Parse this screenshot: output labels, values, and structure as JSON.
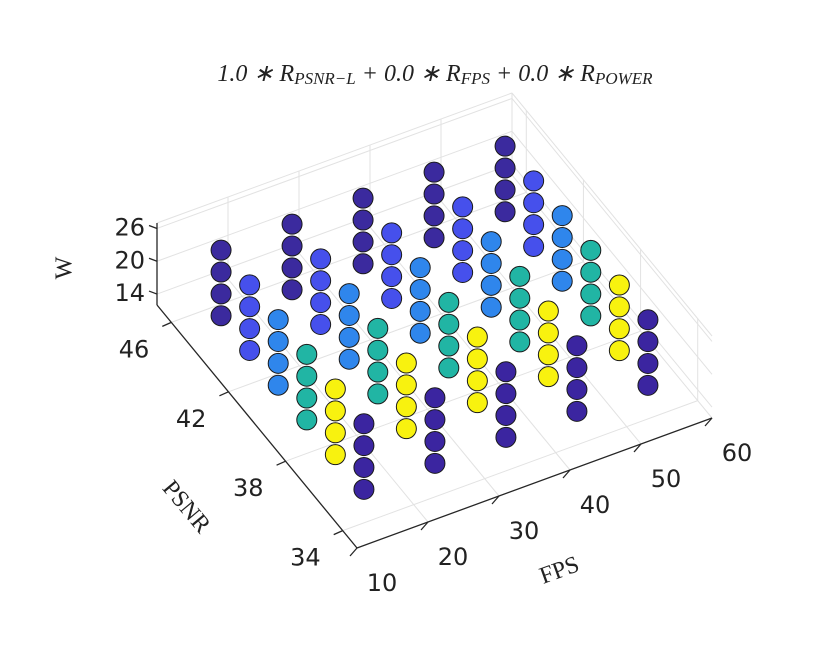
{
  "chart_data": {
    "type": "scatter3d",
    "title": [
      "1.0 ∗ R",
      "PSNR−L",
      " + 0.0 ∗ R",
      "FPS",
      " + 0.0 ∗ R",
      "POWER"
    ],
    "xlabel": "FPS",
    "ylabel": "PSNR",
    "zlabel": "W",
    "xlim": [
      10,
      60
    ],
    "xticks": [
      10,
      20,
      30,
      40,
      50,
      60
    ],
    "ylim": [
      33,
      47
    ],
    "yticks": [
      34,
      38,
      42,
      46
    ],
    "zlim": [
      12,
      27
    ],
    "zticks": [
      14,
      20,
      26
    ],
    "grid": true,
    "series": [
      {
        "color": "#3b2a9e",
        "x": [
          15,
          15,
          15,
          15,
          25,
          25,
          25,
          25,
          35,
          35,
          35,
          35,
          45,
          45,
          45,
          45,
          55,
          55,
          55,
          55
        ],
        "y": [
          45,
          45,
          45,
          45,
          45,
          45,
          45,
          45,
          45,
          45,
          45,
          45,
          45,
          45,
          45,
          45,
          45,
          45,
          45,
          45
        ],
        "z": [
          14,
          18,
          22,
          26,
          14,
          18,
          22,
          26,
          14,
          18,
          22,
          26,
          14,
          18,
          22,
          26,
          14,
          18,
          22,
          26
        ]
      },
      {
        "color": "#4650ec",
        "x": [
          15,
          15,
          15,
          15,
          25,
          25,
          25,
          25,
          35,
          35,
          35,
          35,
          45,
          45,
          45,
          45,
          55,
          55,
          55,
          55
        ],
        "y": [
          43,
          43,
          43,
          43,
          43,
          43,
          43,
          43,
          43,
          43,
          43,
          43,
          43,
          43,
          43,
          43,
          43,
          43,
          43,
          43
        ],
        "z": [
          14,
          18,
          22,
          26,
          14,
          18,
          22,
          26,
          14,
          18,
          22,
          26,
          14,
          18,
          22,
          26,
          14,
          18,
          22,
          26
        ]
      },
      {
        "color": "#2f86ec",
        "x": [
          15,
          15,
          15,
          15,
          25,
          25,
          25,
          25,
          35,
          35,
          35,
          35,
          45,
          45,
          45,
          45,
          55,
          55,
          55,
          55
        ],
        "y": [
          41,
          41,
          41,
          41,
          41,
          41,
          41,
          41,
          41,
          41,
          41,
          41,
          41,
          41,
          41,
          41,
          41,
          41,
          41,
          41
        ],
        "z": [
          14,
          18,
          22,
          26,
          14,
          18,
          22,
          26,
          14,
          18,
          22,
          26,
          14,
          18,
          22,
          26,
          14,
          18,
          22,
          26
        ]
      },
      {
        "color": "#21b5a4",
        "x": [
          15,
          15,
          15,
          15,
          25,
          25,
          25,
          25,
          35,
          35,
          35,
          35,
          45,
          45,
          45,
          45,
          55,
          55,
          55,
          55
        ],
        "y": [
          39,
          39,
          39,
          39,
          39,
          39,
          39,
          39,
          39,
          39,
          39,
          39,
          39,
          39,
          39,
          39,
          39,
          39,
          39,
          39
        ],
        "z": [
          14,
          18,
          22,
          26,
          14,
          18,
          22,
          26,
          14,
          18,
          22,
          26,
          14,
          18,
          22,
          26,
          14,
          18,
          22,
          26
        ]
      },
      {
        "color": "#f8f20f",
        "x": [
          15,
          15,
          15,
          15,
          25,
          25,
          25,
          25,
          35,
          35,
          35,
          35,
          45,
          45,
          45,
          45,
          55,
          55,
          55,
          55
        ],
        "y": [
          37,
          37,
          37,
          37,
          37,
          37,
          37,
          37,
          37,
          37,
          37,
          37,
          37,
          37,
          37,
          37,
          37,
          37,
          37,
          37
        ],
        "z": [
          14,
          18,
          22,
          26,
          14,
          18,
          22,
          26,
          14,
          18,
          22,
          26,
          14,
          18,
          22,
          26,
          14,
          18,
          22,
          26
        ]
      },
      {
        "color": "#3b25a0",
        "x": [
          15,
          15,
          15,
          15,
          25,
          25,
          25,
          25,
          35,
          35,
          35,
          35,
          45,
          45,
          45,
          45,
          55,
          55,
          55,
          55
        ],
        "y": [
          35,
          35,
          35,
          35,
          35,
          35,
          35,
          35,
          35,
          35,
          35,
          35,
          35,
          35,
          35,
          35,
          35,
          35,
          35,
          35
        ],
        "z": [
          14,
          18,
          22,
          26,
          14,
          18,
          22,
          26,
          14,
          18,
          22,
          26,
          14,
          18,
          22,
          26,
          14,
          18,
          22,
          26
        ]
      }
    ]
  }
}
